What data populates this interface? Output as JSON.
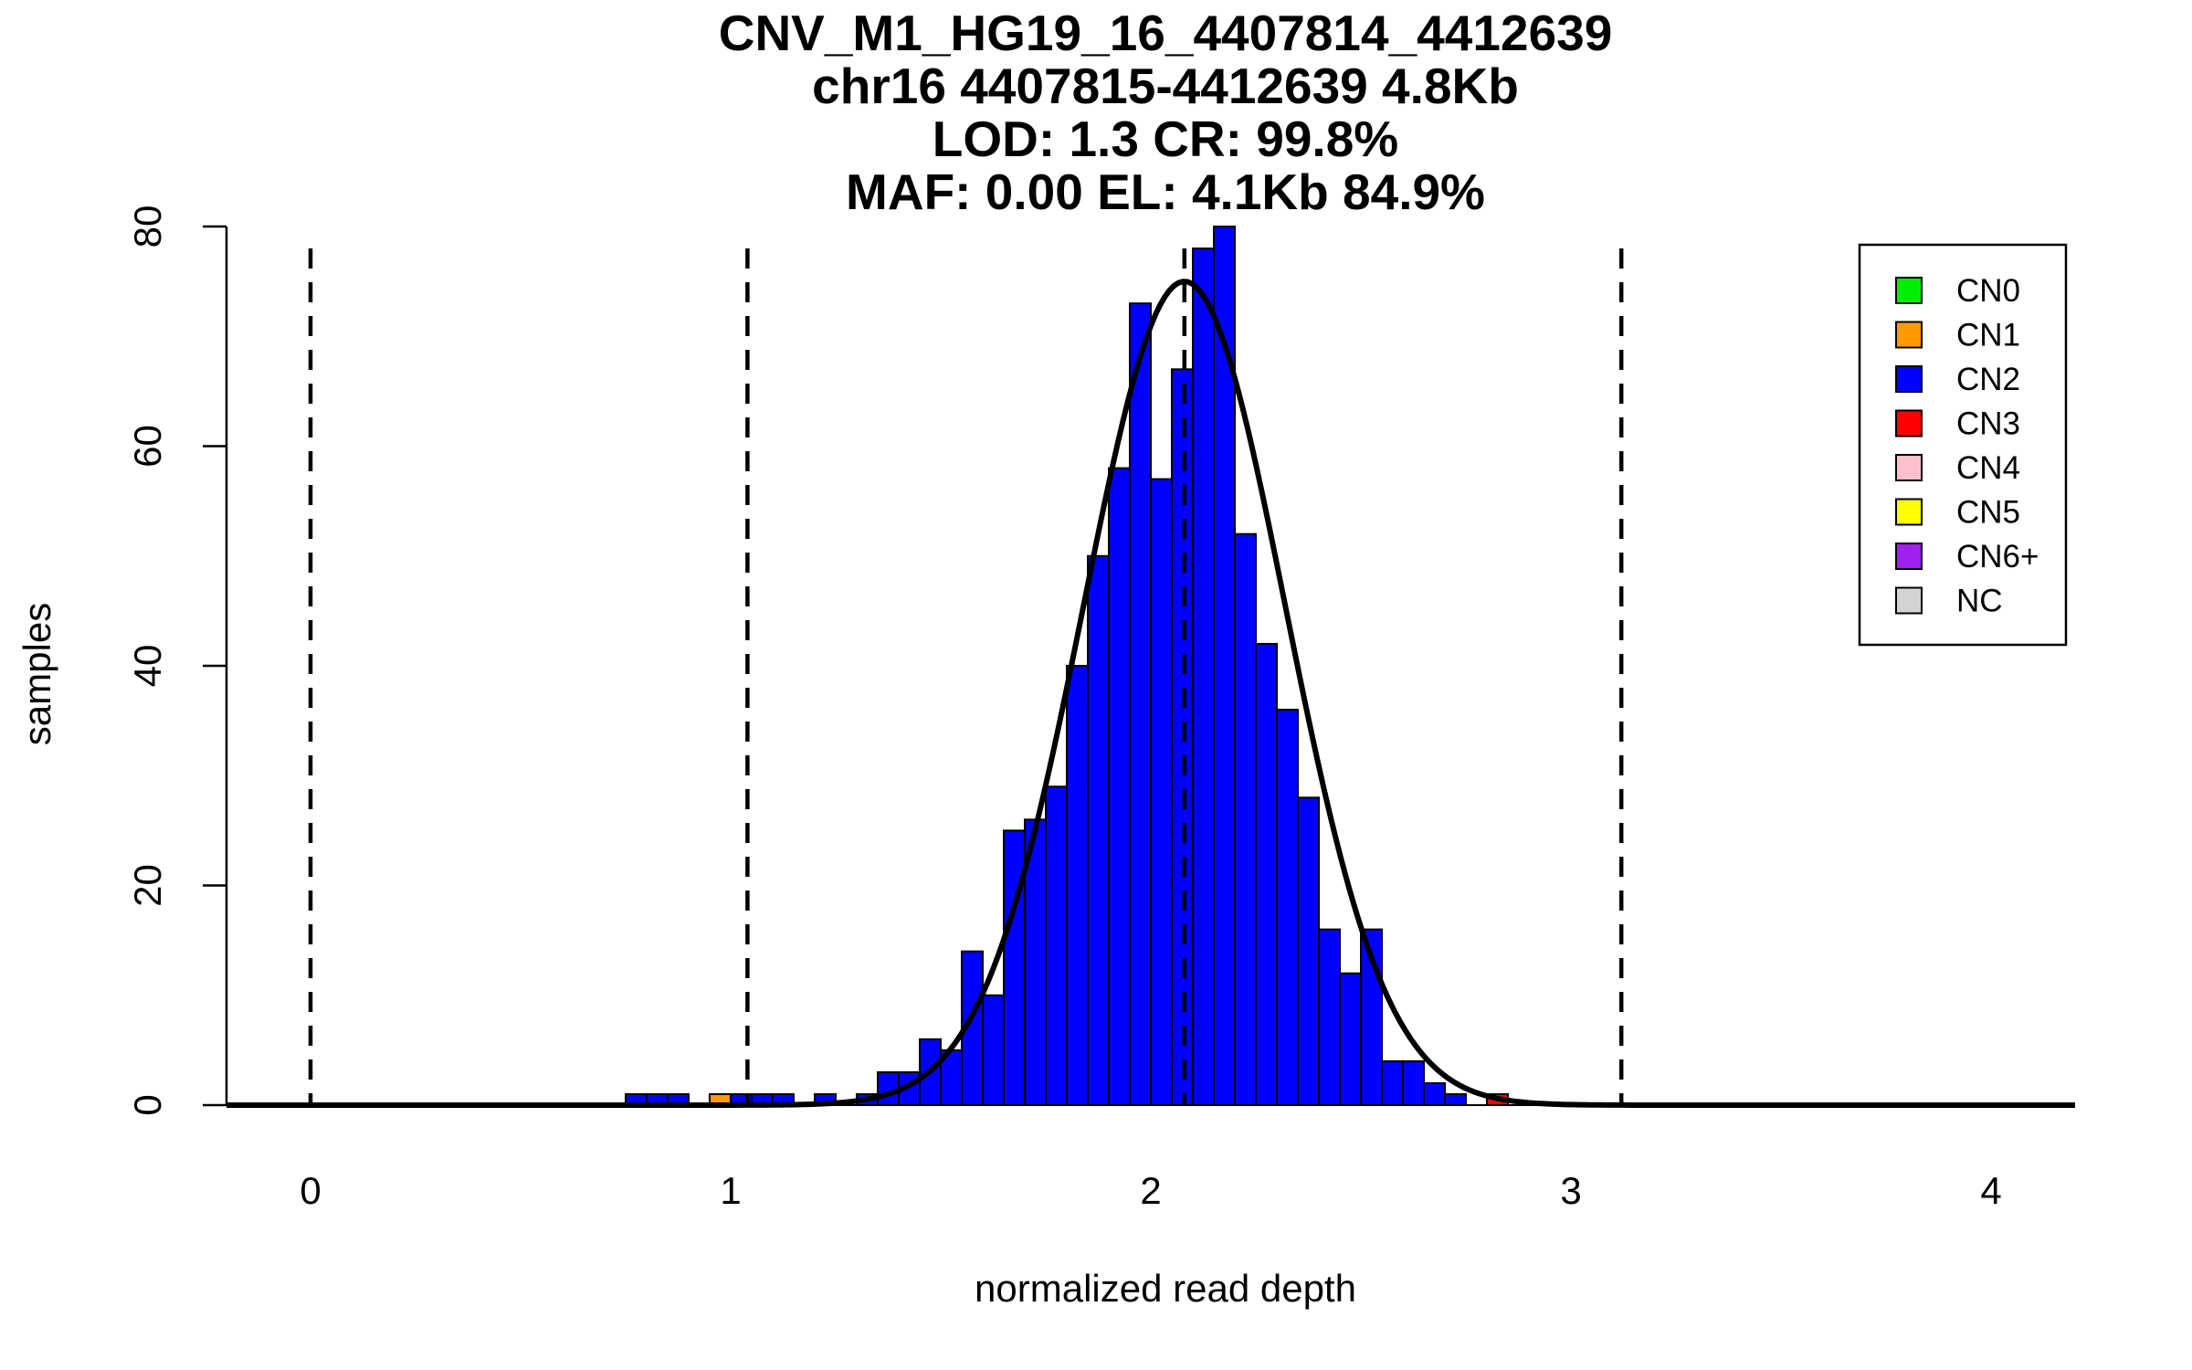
{
  "chart_data": {
    "type": "bar",
    "title_lines": [
      "CNV_M1_HG19_16_4407814_4412639",
      "chr16 4407815-4412639 4.8Kb",
      "LOD: 1.3 CR: 99.8%",
      "MAF: 0.00 EL: 4.1Kb 84.9%"
    ],
    "xlabel": "normalized read depth",
    "ylabel": "samples",
    "xlim": [
      -0.2,
      4.2
    ],
    "ylim": [
      0,
      80
    ],
    "x_ticks": [
      "0",
      "1",
      "2",
      "3",
      "4"
    ],
    "y_ticks": [
      "0",
      "20",
      "40",
      "60",
      "80"
    ],
    "bin_width": 0.05,
    "bins": [
      {
        "x0": 0.75,
        "count": 1,
        "cn": "CN2"
      },
      {
        "x0": 0.8,
        "count": 1,
        "cn": "CN2"
      },
      {
        "x0": 0.85,
        "count": 1,
        "cn": "CN2"
      },
      {
        "x0": 0.95,
        "count": 1,
        "cn": "CN1"
      },
      {
        "x0": 1.0,
        "count": 1,
        "cn": "CN2"
      },
      {
        "x0": 1.05,
        "count": 1,
        "cn": "CN2"
      },
      {
        "x0": 1.1,
        "count": 1,
        "cn": "CN2"
      },
      {
        "x0": 1.2,
        "count": 1,
        "cn": "CN2"
      },
      {
        "x0": 1.3,
        "count": 1,
        "cn": "CN2"
      },
      {
        "x0": 1.35,
        "count": 3,
        "cn": "CN2"
      },
      {
        "x0": 1.4,
        "count": 3,
        "cn": "CN2"
      },
      {
        "x0": 1.45,
        "count": 6,
        "cn": "CN2"
      },
      {
        "x0": 1.5,
        "count": 5,
        "cn": "CN2"
      },
      {
        "x0": 1.55,
        "count": 14,
        "cn": "CN2"
      },
      {
        "x0": 1.6,
        "count": 10,
        "cn": "CN2"
      },
      {
        "x0": 1.65,
        "count": 25,
        "cn": "CN2"
      },
      {
        "x0": 1.7,
        "count": 26,
        "cn": "CN2"
      },
      {
        "x0": 1.75,
        "count": 29,
        "cn": "CN2"
      },
      {
        "x0": 1.8,
        "count": 40,
        "cn": "CN2"
      },
      {
        "x0": 1.85,
        "count": 50,
        "cn": "CN2"
      },
      {
        "x0": 1.9,
        "count": 58,
        "cn": "CN2"
      },
      {
        "x0": 1.95,
        "count": 73,
        "cn": "CN2"
      },
      {
        "x0": 2.0,
        "count": 57,
        "cn": "CN2"
      },
      {
        "x0": 2.05,
        "count": 67,
        "cn": "CN2"
      },
      {
        "x0": 2.1,
        "count": 78,
        "cn": "CN2"
      },
      {
        "x0": 2.15,
        "count": 80,
        "cn": "CN2"
      },
      {
        "x0": 2.2,
        "count": 52,
        "cn": "CN2"
      },
      {
        "x0": 2.25,
        "count": 42,
        "cn": "CN2"
      },
      {
        "x0": 2.3,
        "count": 36,
        "cn": "CN2"
      },
      {
        "x0": 2.35,
        "count": 28,
        "cn": "CN2"
      },
      {
        "x0": 2.4,
        "count": 16,
        "cn": "CN2"
      },
      {
        "x0": 2.45,
        "count": 12,
        "cn": "CN2"
      },
      {
        "x0": 2.5,
        "count": 16,
        "cn": "CN2"
      },
      {
        "x0": 2.55,
        "count": 4,
        "cn": "CN2"
      },
      {
        "x0": 2.6,
        "count": 4,
        "cn": "CN2"
      },
      {
        "x0": 2.65,
        "count": 2,
        "cn": "CN2"
      },
      {
        "x0": 2.7,
        "count": 1,
        "cn": "CN2"
      },
      {
        "x0": 2.8,
        "count": 1,
        "cn": "CN3"
      }
    ],
    "cutoff_lines_x": [
      0.0,
      1.04,
      2.08,
      3.12
    ],
    "normal_fit": {
      "mean": 2.08,
      "sd": 0.24,
      "peak": 75
    },
    "legend": {
      "position": "top-right",
      "items": [
        {
          "label": "CN0",
          "color": "#00ee00"
        },
        {
          "label": "CN1",
          "color": "#ff9900"
        },
        {
          "label": "CN2",
          "color": "#0000ff"
        },
        {
          "label": "CN3",
          "color": "#ff0000"
        },
        {
          "label": "CN4",
          "color": "#ffc0cb"
        },
        {
          "label": "CN5",
          "color": "#ffff00"
        },
        {
          "label": "CN6+",
          "color": "#a020f0"
        },
        {
          "label": "NC",
          "color": "#d3d3d3"
        }
      ]
    }
  }
}
